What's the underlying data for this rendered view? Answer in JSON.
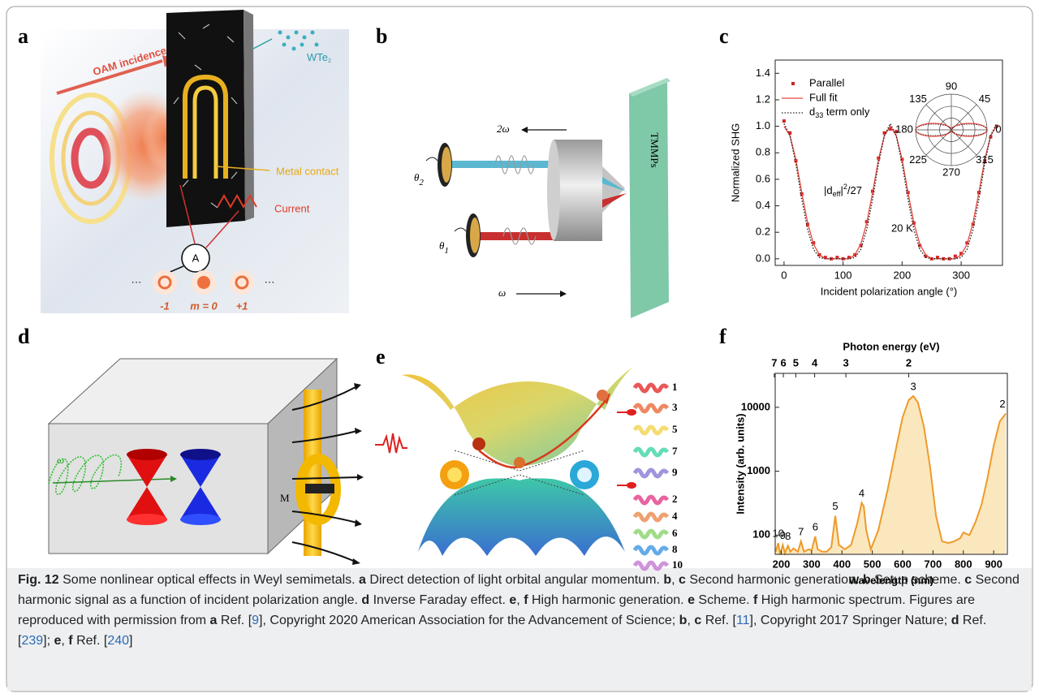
{
  "panel_labels": [
    "a",
    "b",
    "c",
    "d",
    "e",
    "f"
  ],
  "panel_a": {
    "oam_incidence": "OAM incidence",
    "material": {
      "text": "WTe",
      "sub": "2"
    },
    "contact": "Metal contact",
    "current": "Current",
    "ammeter": "A",
    "ellipsis_left": "···",
    "ellipsis_right": "···",
    "modes": [
      "-1",
      "m = 0",
      "+1"
    ]
  },
  "panel_b": {
    "second_harmonic": "2ω",
    "fundamental": "ω",
    "theta_2": {
      "text": "θ",
      "sub": "2"
    },
    "theta_1": {
      "text": "θ",
      "sub": "1"
    },
    "sample": "TMMPs"
  },
  "panel_d": {
    "omega": "ω",
    "magnetization": "M"
  },
  "panel_e": {
    "odd_harmonics": [
      1,
      3,
      5,
      7,
      9
    ],
    "even_harmonics": [
      2,
      4,
      6,
      8,
      10
    ]
  },
  "chart_data": [
    {
      "type": "line",
      "ylabel": "Normalized SHG",
      "xlabel": "Incident polarization angle (°)",
      "x": [
        0,
        10,
        20,
        30,
        40,
        50,
        60,
        70,
        80,
        90,
        100,
        110,
        120,
        130,
        140,
        150,
        160,
        170,
        180,
        190,
        200,
        210,
        220,
        230,
        240,
        250,
        260,
        270,
        280,
        290,
        300,
        310,
        320,
        330,
        340,
        350,
        360
      ],
      "series": [
        {
          "name": "Parallel",
          "color": "#d62020",
          "style": "markers",
          "values": [
            1.04,
            0.95,
            0.74,
            0.49,
            0.26,
            0.12,
            0.03,
            0.01,
            0,
            0.01,
            0,
            0.01,
            0.03,
            0.1,
            0.28,
            0.51,
            0.76,
            0.95,
            0.98,
            0.96,
            0.75,
            0.5,
            0.27,
            0.1,
            0.02,
            0,
            0.01,
            0,
            0,
            0.02,
            0.04,
            0.12,
            0.26,
            0.5,
            0.74,
            0.92,
            1.0
          ]
        },
        {
          "name": "Full fit",
          "color": "#e8473f",
          "style": "solid",
          "values": [
            1.0,
            0.93,
            0.75,
            0.5,
            0.27,
            0.11,
            0.03,
            0,
            0,
            0,
            0,
            0,
            0.03,
            0.11,
            0.27,
            0.5,
            0.75,
            0.93,
            1.0,
            0.93,
            0.75,
            0.5,
            0.27,
            0.11,
            0.03,
            0,
            0,
            0,
            0,
            0,
            0.03,
            0.11,
            0.27,
            0.5,
            0.75,
            0.93,
            1.0
          ]
        },
        {
          "name": {
            "text": "d",
            "sub": "33",
            "tail": " term only"
          },
          "color": "#222222",
          "style": "dotted",
          "values": [
            1.02,
            0.93,
            0.72,
            0.45,
            0.22,
            0.07,
            0.01,
            0,
            0,
            0,
            0,
            0,
            0.01,
            0.07,
            0.22,
            0.45,
            0.72,
            0.93,
            1.02,
            0.93,
            0.72,
            0.45,
            0.22,
            0.07,
            0.01,
            0,
            0,
            0,
            0,
            0,
            0.01,
            0.07,
            0.22,
            0.45,
            0.72,
            0.93,
            1.02
          ]
        }
      ],
      "xlim": [
        -15,
        370
      ],
      "ylim": [
        -0.05,
        1.5
      ],
      "xticks": [
        0,
        100,
        200,
        300
      ],
      "yticks": [
        {
          "value": 0,
          "label": "0.0"
        },
        0.2,
        0.4,
        0.6,
        0.8,
        {
          "value": 1,
          "label": "1.0"
        },
        1.2,
        1.4
      ],
      "annotations": [
        {
          "text": "|d",
          "sub": "eff",
          "mid": "|",
          "sup": "2",
          "tail": "/27"
        },
        "20 K"
      ],
      "polar_inset": {
        "angle_ticks": [
          0,
          45,
          90,
          135,
          180,
          225,
          270,
          315
        ]
      }
    },
    {
      "type": "area",
      "ylabel": "Intensity (arb. units)",
      "xlabel": "Wavelength (nm)",
      "x2label": "Photon energy (eV)",
      "x": [
        182,
        190,
        196,
        205,
        212,
        222,
        230,
        240,
        255,
        265,
        275,
        290,
        300,
        312,
        320,
        335,
        350,
        365,
        378,
        390,
        410,
        430,
        450,
        465,
        472,
        480,
        495,
        520,
        550,
        580,
        600,
        620,
        635,
        650,
        670,
        690,
        710,
        730,
        750,
        770,
        790,
        800,
        820,
        840,
        860,
        880,
        900,
        920,
        940
      ],
      "values": [
        55,
        75,
        50,
        70,
        52,
        68,
        55,
        62,
        55,
        80,
        55,
        60,
        58,
        95,
        60,
        55,
        55,
        65,
        200,
        70,
        60,
        70,
        150,
        320,
        280,
        120,
        60,
        120,
        500,
        2500,
        7000,
        13000,
        15000,
        12000,
        5000,
        1200,
        200,
        80,
        75,
        80,
        90,
        110,
        100,
        160,
        300,
        800,
        2500,
        6000,
        8000
      ],
      "color": "#ee9a2a",
      "fill": "#fbe7bd",
      "xlim": [
        180,
        945
      ],
      "ylim": [
        50,
        34000
      ],
      "ylog": true,
      "xticks": [
        200,
        300,
        400,
        500,
        600,
        700,
        800,
        900
      ],
      "yticks": [
        100,
        1000,
        10000
      ],
      "x2ticks": [
        {
          "value": 177,
          "label": "7"
        },
        {
          "value": 207,
          "label": "6"
        },
        {
          "value": 248,
          "label": "5"
        },
        {
          "value": 310,
          "label": "4"
        },
        {
          "value": 413,
          "label": "3"
        },
        {
          "value": 620,
          "label": "2"
        }
      ],
      "peak_labels": [
        {
          "label": 10,
          "x": 190,
          "y": 75
        },
        {
          "label": 9,
          "x": 205,
          "y": 70
        },
        {
          "label": 8,
          "x": 222,
          "y": 68
        },
        {
          "label": 7,
          "x": 265,
          "y": 80
        },
        {
          "label": 6,
          "x": 312,
          "y": 95
        },
        {
          "label": 5,
          "x": 378,
          "y": 200
        },
        {
          "label": 4,
          "x": 465,
          "y": 320
        },
        {
          "label": 3,
          "x": 635,
          "y": 15000
        },
        {
          "label": 2,
          "x": 940,
          "y": 8000
        }
      ]
    }
  ],
  "caption": {
    "segments": [
      {
        "text": "Fig. 12",
        "style": "bold"
      },
      {
        "text": "  Some nonlinear optical effects in Weyl semimetals. ",
        "style": "plain"
      },
      {
        "text": "a",
        "style": "bold"
      },
      {
        "text": " Direct detection of light orbital angular momentum. ",
        "style": "plain"
      },
      {
        "text": "b",
        "style": "bold"
      },
      {
        "text": ", ",
        "style": "plain"
      },
      {
        "text": "c",
        "style": "bold"
      },
      {
        "text": " Second harmonic generation. ",
        "style": "plain"
      },
      {
        "text": "b",
        "style": "bold"
      },
      {
        "text": " Setup scheme. ",
        "style": "plain"
      },
      {
        "text": "c",
        "style": "bold"
      },
      {
        "text": " Second harmonic signal as a function of incident polarization angle. ",
        "style": "plain"
      },
      {
        "text": "d",
        "style": "bold"
      },
      {
        "text": " Inverse Faraday effect. ",
        "style": "plain"
      },
      {
        "text": "e",
        "style": "bold"
      },
      {
        "text": ", ",
        "style": "plain"
      },
      {
        "text": "f",
        "style": "bold"
      },
      {
        "text": " High harmonic generation. ",
        "style": "plain"
      },
      {
        "text": "e",
        "style": "bold"
      },
      {
        "text": " Scheme. ",
        "style": "plain"
      },
      {
        "text": "f",
        "style": "bold"
      },
      {
        "text": " High harmonic spectrum. Figures are reproduced with permission from ",
        "style": "plain"
      },
      {
        "text": "a",
        "style": "bold"
      },
      {
        "text": " Ref. [",
        "style": "plain"
      },
      {
        "text": "9",
        "style": "link"
      },
      {
        "text": "], Copyright 2020 American Association for the Advancement of Science; ",
        "style": "plain"
      },
      {
        "text": "b",
        "style": "bold"
      },
      {
        "text": ", ",
        "style": "plain"
      },
      {
        "text": "c",
        "style": "bold"
      },
      {
        "text": " Ref. [",
        "style": "plain"
      },
      {
        "text": "11",
        "style": "link"
      },
      {
        "text": "], Copyright 2017 Springer Nature; ",
        "style": "plain"
      },
      {
        "text": "d",
        "style": "bold"
      },
      {
        "text": " Ref. [",
        "style": "plain"
      },
      {
        "text": "239",
        "style": "link"
      },
      {
        "text": "]; ",
        "style": "plain"
      },
      {
        "text": "e",
        "style": "bold"
      },
      {
        "text": ", ",
        "style": "plain"
      },
      {
        "text": "f",
        "style": "bold"
      },
      {
        "text": " Ref. [",
        "style": "plain"
      },
      {
        "text": "240",
        "style": "link"
      },
      {
        "text": "]",
        "style": "plain"
      }
    ]
  }
}
